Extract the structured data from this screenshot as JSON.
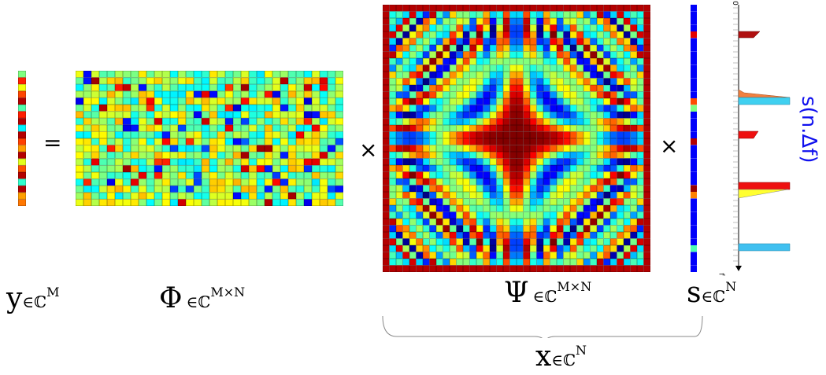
{
  "operators": {
    "equals": "=",
    "times1": "×",
    "times2": "×"
  },
  "labels": {
    "y": {
      "symbol": "y",
      "set": "∈ℂ",
      "dim": "M"
    },
    "phi": {
      "symbol": "Φ",
      "set": "∈ℂ",
      "dim": "M×N"
    },
    "psi": {
      "symbol": "Ψ",
      "set": "∈ℂ",
      "dim": "M×N"
    },
    "s": {
      "symbol": "s",
      "set": "∈ℂ",
      "dim": "N"
    },
    "x": {
      "symbol": "x",
      "set": "∈ℂ",
      "dim": "N"
    }
  },
  "spectrum": {
    "axis_label": "s(n.Δf)",
    "axis_zero": "0",
    "axis_end": "f",
    "colors": {
      "dark_red": "#b01010",
      "red": "#ee1010",
      "orange": "#f08040",
      "cyan": "#40d0f0",
      "yellow": "#ffff30",
      "axis": "#0000ee"
    }
  }
}
